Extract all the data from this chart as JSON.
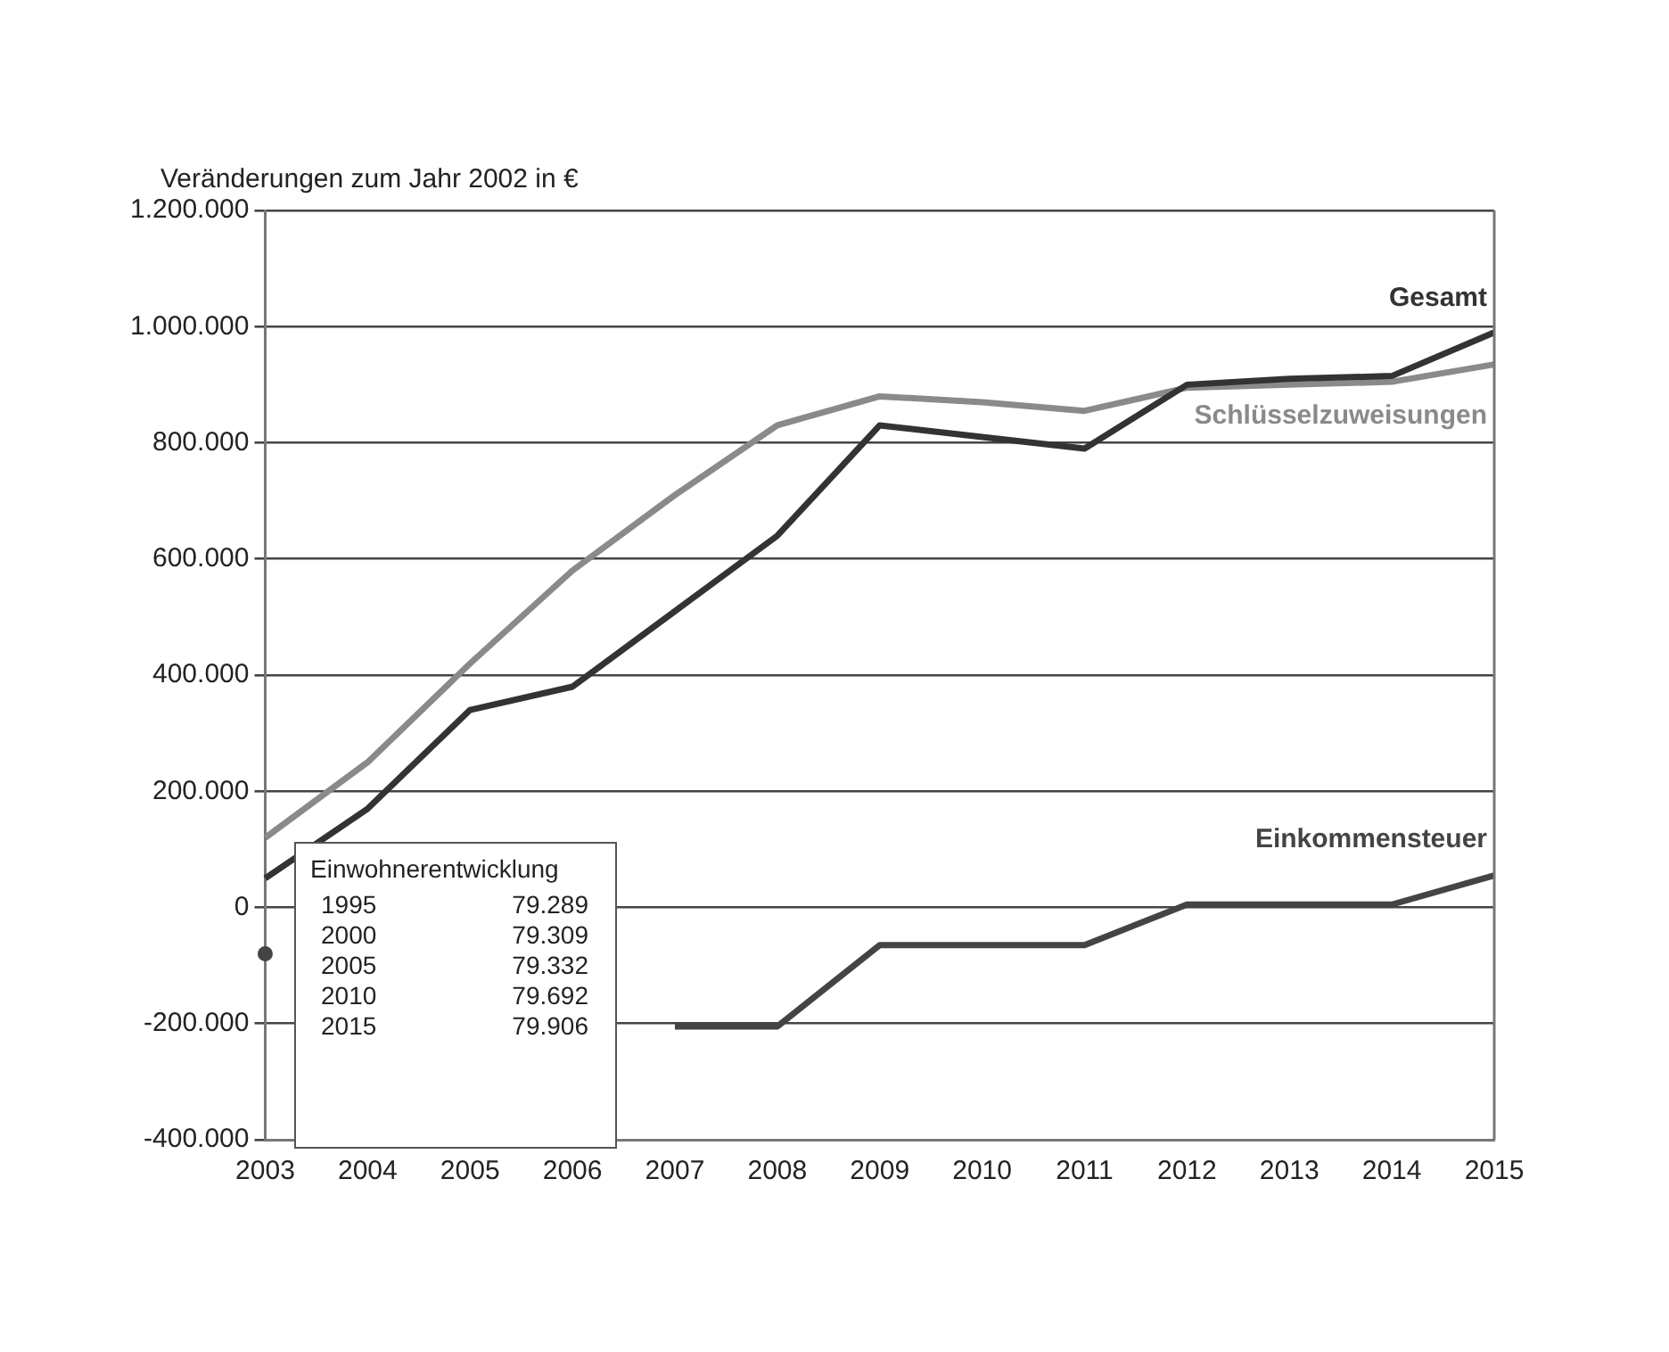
{
  "chart_data": {
    "type": "line",
    "ylabel": "Veränderungen zum Jahr 2002 in €",
    "categories": [
      "2003",
      "2004",
      "2005",
      "2006",
      "2007",
      "2008",
      "2009",
      "2010",
      "2011",
      "2012",
      "2013",
      "2014",
      "2015"
    ],
    "series": [
      {
        "name": "Gesamt",
        "color": "#333333",
        "values": [
          50000,
          170000,
          340000,
          380000,
          510000,
          640000,
          830000,
          810000,
          790000,
          900000,
          910000,
          915000,
          990000
        ]
      },
      {
        "name": "Schlüsselzuweisungen",
        "color": "#8a8a8a",
        "values": [
          120000,
          250000,
          420000,
          580000,
          710000,
          830000,
          880000,
          870000,
          855000,
          895000,
          900000,
          905000,
          935000
        ]
      },
      {
        "name": "Einkommensteuer",
        "color": "#444444",
        "values": [
          -80000,
          null,
          null,
          null,
          -205000,
          -205000,
          -65000,
          -65000,
          -65000,
          5000,
          5000,
          5000,
          55000
        ]
      }
    ],
    "ylim": [
      -400000,
      1200000
    ],
    "yticks": [
      {
        "value": -400000,
        "label": "-400.000"
      },
      {
        "value": -200000,
        "label": "-200.000"
      },
      {
        "value": 0,
        "label": "0"
      },
      {
        "value": 200000,
        "label": "200.000"
      },
      {
        "value": 400000,
        "label": "400.000"
      },
      {
        "value": 600000,
        "label": "600.000"
      },
      {
        "value": 800000,
        "label": "800.000"
      },
      {
        "value": 1000000,
        "label": "1.000.000"
      },
      {
        "value": 1200000,
        "label": "1.200.000"
      }
    ],
    "grid": "y",
    "legend": false,
    "marker": "none",
    "line_style": "solid",
    "annotations": [
      "Einwohnerentwicklung",
      "1995",
      "79.289",
      "2000",
      "79.309",
      "2005",
      "79.332",
      "2010",
      "79.692",
      "2015",
      "79.906"
    ]
  }
}
